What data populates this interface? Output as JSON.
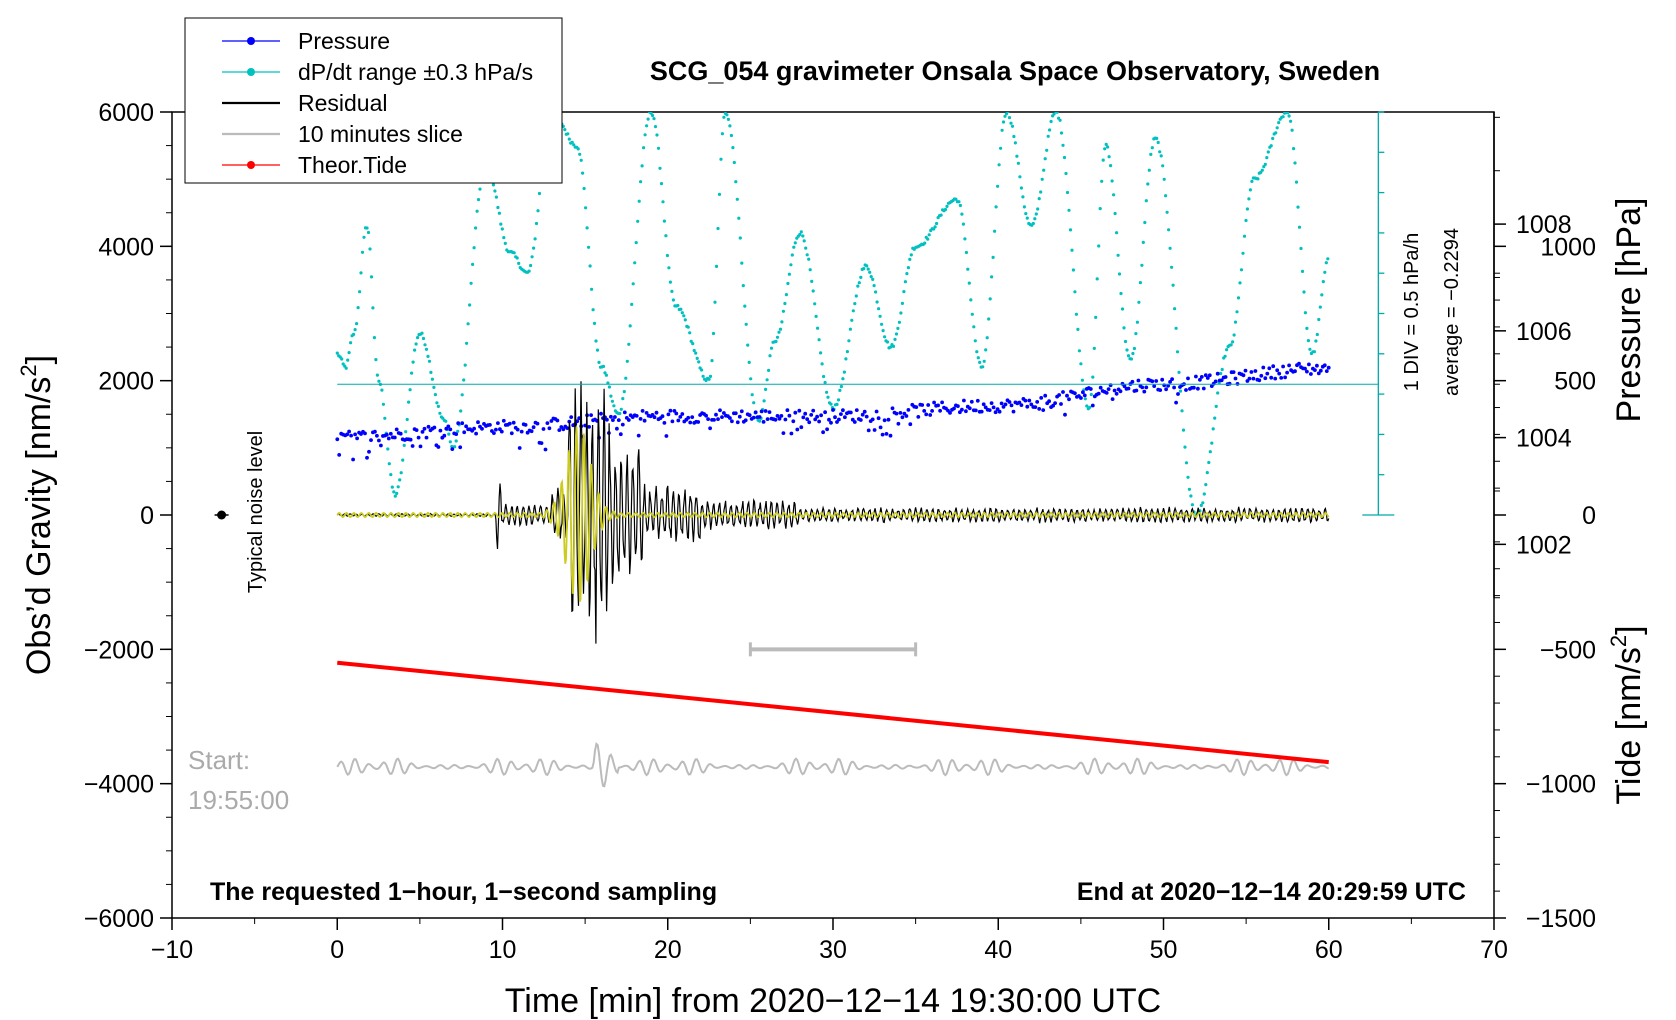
{
  "chart_data": {
    "type": "line",
    "title": "SCG_054 gravimeter Onsala Space Observatory, Sweden",
    "xlabel": "Time [min] from 2020−12−14 19:30:00 UTC",
    "ylabel_main": "Obs’d Gravity [nm/s",
    "ylabel_main_sup": "2",
    "ylabel_main_end": "]",
    "ylabel_pressure": "Pressure [hPa]",
    "ylabel_tide": "Tide [nm/s",
    "ylabel_tide_sup": "2",
    "ylabel_tide_end": "]",
    "xlim": [
      -10,
      70
    ],
    "ylim_main": [
      -6000,
      6000
    ],
    "ylim_pressure": [
      995.0,
      1010.1
    ],
    "ylim_tide": [
      -1500,
      1500
    ],
    "x_ticks": [
      -10,
      0,
      10,
      20,
      30,
      40,
      50,
      60,
      70
    ],
    "x_tick_labels": [
      "−10",
      "0",
      "10",
      "20",
      "30",
      "40",
      "50",
      "60",
      "70"
    ],
    "y_main_ticks": [
      -6000,
      -4000,
      -2000,
      0,
      2000,
      4000,
      6000
    ],
    "y_main_tick_labels": [
      "−6000",
      "−4000",
      "−2000",
      "0",
      "2000",
      "4000",
      "6000"
    ],
    "y_pressure_ticks": [
      1002,
      1004,
      1006,
      1008
    ],
    "y_pressure_tick_labels": [
      "1002",
      "1004",
      "1006",
      "1008"
    ],
    "y_tide_ticks": [
      -1500,
      -1000,
      -500,
      0,
      500,
      1000
    ],
    "y_tide_tick_labels": [
      "−1500",
      "−1000",
      "−500",
      "0",
      "500",
      "1000"
    ],
    "legend": [
      {
        "label": "Pressure",
        "color": "#0000ff",
        "marker": true
      },
      {
        "label": "dP/dt range ±0.3 hPa/s",
        "color": "#00c0c0",
        "marker": true
      },
      {
        "label": "Residual",
        "color": "#000000",
        "marker": false
      },
      {
        "label": "10 minutes slice",
        "color": "#bbbbbb",
        "marker": false
      },
      {
        "label": "Theor.Tide",
        "color": "#ff0000",
        "marker": true
      }
    ],
    "annotations": {
      "noise_label": "Typical noise level",
      "noise_point": {
        "x": -7,
        "y": 0
      },
      "div_label": "1 DIV = 0.5 hPa/h",
      "avg_label": "average = −0.2294",
      "start_label": "Start:",
      "start_time": "19:55:00",
      "bottom_left": "The requested 1−hour, 1−second sampling",
      "bottom_right": "End at 2020−12−14 20:29:59 UTC",
      "slice_bar_min": [
        25,
        35
      ],
      "slice_bar_y": -2000
    },
    "series": [
      {
        "name": "Pressure",
        "axis": "pressure",
        "color": "#0000ff",
        "x": [
          0,
          10,
          20,
          30,
          40,
          50,
          60
        ],
        "y": [
          1004.0,
          1004.2,
          1004.4,
          1004.4,
          1004.6,
          1005.0,
          1005.3
        ]
      },
      {
        "name": "dP/dt range ±0.3 hPa/s",
        "axis": "main",
        "color": "#00c0c0",
        "x": [
          0,
          0.5,
          1.0,
          1.8,
          2.5,
          3.5,
          5.0,
          6.5,
          7.0,
          9.0,
          10.5,
          11.5,
          13.0,
          14.5,
          16.0,
          17.0,
          19.0,
          20.5,
          22.5,
          23.5,
          25.5,
          26.5,
          28.0,
          30.0,
          32.0,
          33.5,
          35.0,
          37.5,
          39.0,
          40.5,
          42.0,
          43.5,
          45.5,
          46.5,
          48.0,
          49.5,
          52.0,
          54.0,
          55.5,
          57.5,
          59.0,
          60.0
        ],
        "y": [
          2400,
          2200,
          2700,
          4300,
          2000,
          300,
          2700,
          1400,
          1000,
          5200,
          3900,
          3600,
          6000,
          5500,
          2200,
          1500,
          6000,
          3100,
          2000,
          6000,
          1400,
          2600,
          4200,
          1600,
          3700,
          2500,
          4000,
          4700,
          2200,
          6000,
          4300,
          6000,
          1600,
          5500,
          2300,
          5600,
          0,
          2500,
          5000,
          6000,
          2400,
          3800
        ]
      },
      {
        "name": "Residual",
        "axis": "main",
        "color": "#000000",
        "x": [
          0,
          9.5,
          9.8,
          10.1,
          13.0,
          14.0,
          14.6,
          15.0,
          15.3,
          15.6,
          16.0,
          16.4,
          17.0,
          18.0,
          20.0,
          23.0,
          25.0,
          27.5,
          30.0,
          35.0,
          40.0,
          50.0,
          60.0
        ],
        "y": [
          0,
          0,
          300,
          -500,
          200,
          -800,
          1500,
          -1700,
          2000,
          -2100,
          1300,
          -1200,
          900,
          -700,
          500,
          -300,
          220,
          300,
          120,
          100,
          90,
          90,
          60
        ]
      },
      {
        "name": "10 minutes slice",
        "axis": "main",
        "color": "#bbbbbb",
        "x": [
          0,
          60
        ],
        "y": [
          -3750,
          -3750
        ]
      },
      {
        "name": "Theor.Tide",
        "axis": "tide",
        "color": "#ff0000",
        "x": [
          0,
          60
        ],
        "y": [
          -550,
          -920
        ]
      }
    ]
  }
}
